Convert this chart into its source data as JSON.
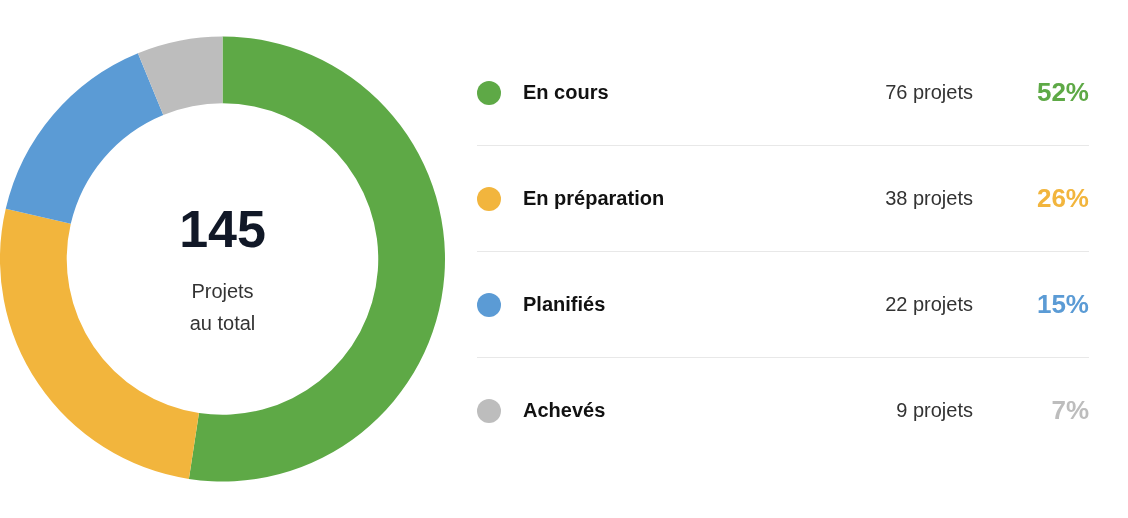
{
  "chart_data": {
    "type": "donut",
    "title": "145",
    "subtitle": "Projets au total",
    "categories": [
      "En cours",
      "En préparation",
      "Planifiés",
      "Achevés"
    ],
    "values": [
      76,
      38,
      22,
      9
    ],
    "colors": [
      "#5ea946",
      "#f2b53d",
      "#5b9bd5",
      "#bdbdbd"
    ],
    "value_labels": [
      "76 projets",
      "38 projets",
      "22 projets",
      "9 projets"
    ],
    "annotations": [
      {
        "text": "52%",
        "x": "En cours"
      },
      {
        "text": "26%",
        "x": "En préparation"
      },
      {
        "text": "15%",
        "x": "Planifiés"
      },
      {
        "text": "7%",
        "x": "Achevés"
      }
    ],
    "legend": "right"
  }
}
